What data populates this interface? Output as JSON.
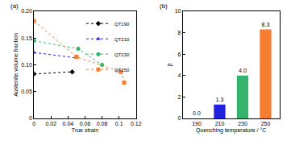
{
  "chart_data": [
    {
      "type": "scatter",
      "title": "(a)",
      "x_label": "True strain",
      "y_label": "Austenite volume fraction",
      "xlim": [
        0,
        0.12
      ],
      "xticks": [
        0,
        0.02,
        0.04,
        0.06,
        0.08,
        0.1,
        0.12
      ],
      "ylim": [
        0,
        0.2
      ],
      "yticks": [
        0,
        0.05,
        {
          "value": 0.1,
          "label": "0.10"
        },
        0.15,
        {
          "value": 0.2,
          "label": "0.20"
        }
      ],
      "grid": false,
      "legend": "upper right",
      "line_style": "dotted",
      "series": [
        {
          "name": "QT190",
          "color": "#000000",
          "marker": "diamond",
          "x": [
            0,
            0.045
          ],
          "values": [
            0.083,
            0.087
          ]
        },
        {
          "name": "QT210",
          "color": "#2222dd",
          "marker": "triangle-up",
          "x": [
            0,
            0.05
          ],
          "values": [
            0.123,
            0.113
          ]
        },
        {
          "name": "QT230",
          "color": "#33b36b",
          "marker": "circle",
          "x": [
            0,
            0.052,
            0.08
          ],
          "values": [
            0.145,
            0.13,
            0.1
          ]
        },
        {
          "name": "QT250",
          "color": "#f47d30",
          "marker": "square",
          "x": [
            0,
            0.05,
            0.102,
            0.106
          ],
          "values": [
            0.182,
            0.115,
            0.087,
            0.067
          ]
        }
      ]
    },
    {
      "type": "bar",
      "title": "(b)",
      "x_label": "Quenching temperature / °C",
      "y_label": "β",
      "categories": [
        "190",
        "210",
        "230",
        "250"
      ],
      "values": [
        0.0,
        1.3,
        4.0,
        8.3
      ],
      "value_labels": [
        "0.0",
        "1.3",
        "4.0",
        "8.3"
      ],
      "colors": [
        "#000000",
        "#2222dd",
        "#33b36b",
        "#f47d30"
      ],
      "ylim": [
        0,
        10
      ],
      "yticks": [
        0,
        2,
        4,
        6,
        8,
        10
      ],
      "grid": false,
      "data_labels": true
    }
  ]
}
